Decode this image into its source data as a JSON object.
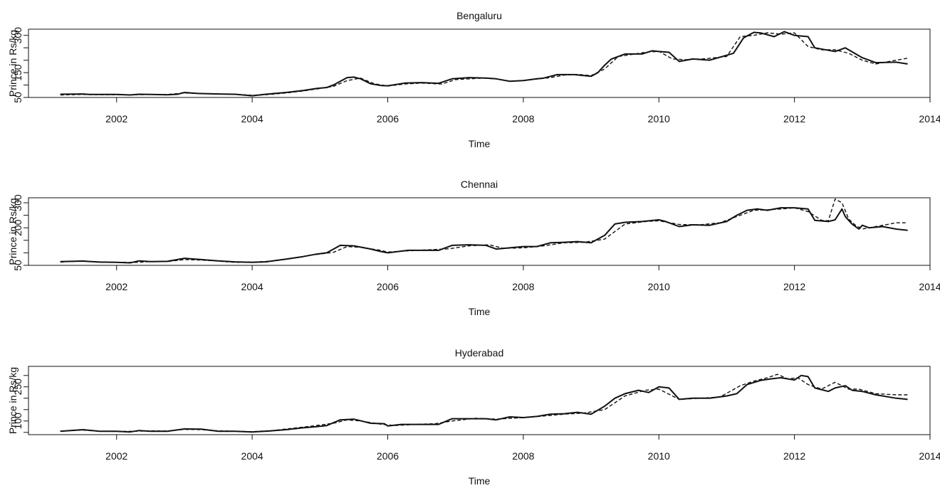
{
  "chart_data": [
    {
      "type": "line",
      "title": "Bengaluru",
      "xlabel": "Time",
      "ylabel": "Prince in Rs/kg",
      "xlim": [
        2000.7,
        2014
      ],
      "ylim": [
        50,
        325
      ],
      "xticks": [
        2002,
        2004,
        2006,
        2008,
        2010,
        2012,
        2014
      ],
      "yticks": [
        50,
        150,
        300
      ],
      "yminor": [
        100,
        200,
        250
      ],
      "series": [
        {
          "style": "solid",
          "x": [
            2001.17,
            2001.5,
            2001.6,
            2002.0,
            2002.2,
            2002.33,
            2002.5,
            2002.75,
            2002.9,
            2003.0,
            2003.2,
            2003.5,
            2003.75,
            2004.0,
            2004.2,
            2004.5,
            2004.75,
            2004.95,
            2005.1,
            2005.2,
            2005.3,
            2005.4,
            2005.5,
            2005.6,
            2005.75,
            2005.9,
            2006.0,
            2006.25,
            2006.5,
            2006.75,
            2006.95,
            2007.2,
            2007.45,
            2007.6,
            2007.8,
            2008.0,
            2008.2,
            2008.3,
            2008.4,
            2008.5,
            2008.75,
            2009.0,
            2009.1,
            2009.2,
            2009.3,
            2009.5,
            2009.75,
            2009.9,
            2010.0,
            2010.15,
            2010.3,
            2010.5,
            2010.75,
            2011.0,
            2011.1,
            2011.25,
            2011.4,
            2011.5,
            2011.7,
            2011.85,
            2012.0,
            2012.2,
            2012.3,
            2012.5,
            2012.6,
            2012.7,
            2012.75,
            2013.0,
            2013.2,
            2013.5,
            2013.67
          ],
          "values": [
            63,
            64,
            62,
            62,
            60,
            63,
            62,
            61,
            63,
            70,
            66,
            64,
            63,
            57,
            63,
            70,
            78,
            86,
            90,
            100,
            115,
            130,
            132,
            125,
            105,
            98,
            97,
            108,
            110,
            107,
            125,
            130,
            128,
            125,
            115,
            118,
            125,
            128,
            135,
            142,
            142,
            135,
            150,
            180,
            205,
            225,
            225,
            238,
            235,
            232,
            195,
            205,
            200,
            220,
            228,
            290,
            312,
            310,
            295,
            315,
            300,
            295,
            250,
            240,
            235,
            245,
            250,
            210,
            190,
            192,
            185
          ]
        },
        {
          "style": "dashed",
          "x": [
            2001.17,
            2001.5,
            2001.75,
            2002.0,
            2002.3,
            2002.5,
            2002.75,
            2003.0,
            2003.2,
            2003.5,
            2003.75,
            2004.0,
            2004.2,
            2004.5,
            2004.75,
            2005.0,
            2005.2,
            2005.4,
            2005.6,
            2005.8,
            2006.0,
            2006.25,
            2006.5,
            2006.8,
            2007.0,
            2007.4,
            2007.6,
            2007.8,
            2008.0,
            2008.2,
            2008.4,
            2008.6,
            2008.8,
            2009.0,
            2009.2,
            2009.4,
            2009.6,
            2009.8,
            2010.0,
            2010.2,
            2010.4,
            2010.7,
            2011.0,
            2011.2,
            2011.4,
            2011.6,
            2011.8,
            2012.0,
            2012.2,
            2012.4,
            2012.6,
            2012.8,
            2013.0,
            2013.2,
            2013.5,
            2013.67
          ],
          "values": [
            60,
            62,
            61,
            61,
            61,
            62,
            62,
            68,
            66,
            64,
            62,
            59,
            61,
            68,
            76,
            86,
            95,
            118,
            128,
            105,
            96,
            104,
            108,
            104,
            122,
            128,
            125,
            116,
            118,
            124,
            130,
            140,
            143,
            138,
            165,
            215,
            223,
            232,
            236,
            205,
            202,
            206,
            215,
            295,
            300,
            310,
            305,
            310,
            255,
            242,
            242,
            228,
            200,
            185,
            200,
            208
          ]
        }
      ]
    },
    {
      "type": "line",
      "title": "Chennai",
      "xlabel": "Time",
      "ylabel": "Prince in Rs/kg",
      "xlim": [
        2000.7,
        2014
      ],
      "ylim": [
        50,
        320
      ],
      "xticks": [
        2002,
        2004,
        2006,
        2008,
        2010,
        2012,
        2014
      ],
      "yticks": [
        50,
        200,
        300
      ],
      "yminor": [
        100,
        150,
        250
      ],
      "series": [
        {
          "style": "solid",
          "x": [
            2001.17,
            2001.5,
            2001.75,
            2002.0,
            2002.2,
            2002.33,
            2002.5,
            2002.75,
            2003.0,
            2003.25,
            2003.5,
            2003.75,
            2004.0,
            2004.2,
            2004.5,
            2004.75,
            2004.95,
            2005.1,
            2005.3,
            2005.5,
            2005.75,
            2005.9,
            2006.0,
            2006.3,
            2006.5,
            2006.75,
            2006.95,
            2007.2,
            2007.45,
            2007.6,
            2007.8,
            2008.0,
            2008.2,
            2008.4,
            2008.6,
            2008.8,
            2009.0,
            2009.2,
            2009.35,
            2009.5,
            2009.75,
            2010.0,
            2010.1,
            2010.3,
            2010.5,
            2010.75,
            2011.0,
            2011.15,
            2011.3,
            2011.45,
            2011.6,
            2011.8,
            2012.0,
            2012.2,
            2012.3,
            2012.5,
            2012.6,
            2012.7,
            2012.75,
            2012.85,
            2012.95,
            2013.0,
            2013.1,
            2013.3,
            2013.5,
            2013.67
          ],
          "values": [
            65,
            67,
            63,
            62,
            60,
            68,
            65,
            66,
            78,
            73,
            68,
            64,
            62,
            64,
            75,
            85,
            95,
            100,
            130,
            128,
            115,
            105,
            100,
            110,
            110,
            110,
            130,
            132,
            130,
            115,
            120,
            125,
            125,
            140,
            142,
            145,
            140,
            170,
            215,
            222,
            225,
            232,
            225,
            205,
            212,
            210,
            225,
            250,
            270,
            275,
            270,
            280,
            280,
            275,
            230,
            225,
            232,
            275,
            245,
            215,
            195,
            210,
            200,
            205,
            195,
            190
          ]
        },
        {
          "style": "dashed",
          "x": [
            2001.17,
            2001.5,
            2001.75,
            2002.0,
            2002.3,
            2002.5,
            2002.75,
            2003.0,
            2003.25,
            2003.5,
            2003.75,
            2004.0,
            2004.3,
            2004.6,
            2004.9,
            2005.2,
            2005.4,
            2005.6,
            2005.9,
            2006.0,
            2006.3,
            2006.6,
            2006.9,
            2007.2,
            2007.5,
            2007.7,
            2008.0,
            2008.3,
            2008.6,
            2008.9,
            2009.2,
            2009.5,
            2009.8,
            2010.0,
            2010.3,
            2010.6,
            2010.9,
            2011.2,
            2011.4,
            2011.6,
            2011.8,
            2012.0,
            2012.2,
            2012.4,
            2012.5,
            2012.6,
            2012.7,
            2012.8,
            2012.9,
            2013.0,
            2013.2,
            2013.5,
            2013.67
          ],
          "values": [
            63,
            68,
            62,
            62,
            62,
            65,
            65,
            73,
            71,
            67,
            62,
            63,
            67,
            78,
            92,
            102,
            125,
            122,
            110,
            103,
            108,
            112,
            116,
            128,
            132,
            118,
            120,
            128,
            140,
            142,
            155,
            215,
            225,
            228,
            213,
            212,
            220,
            250,
            270,
            272,
            275,
            280,
            265,
            230,
            228,
            315,
            300,
            235,
            210,
            195,
            205,
            220,
            220
          ]
        }
      ]
    },
    {
      "type": "line",
      "title": "Hyderabad",
      "xlabel": "Time",
      "ylabel": "Prince in Rs/kg",
      "xlim": [
        2000.7,
        2014
      ],
      "ylim": [
        40,
        340
      ],
      "xticks": [
        2002,
        2004,
        2006,
        2008,
        2010,
        2012,
        2014
      ],
      "yticks": [
        100,
        250
      ],
      "yminor": [
        50,
        150,
        200,
        300
      ],
      "series": [
        {
          "style": "solid",
          "x": [
            2001.17,
            2001.5,
            2001.75,
            2002.0,
            2002.2,
            2002.33,
            2002.5,
            2002.75,
            2003.0,
            2003.25,
            2003.5,
            2003.75,
            2004.0,
            2004.25,
            2004.5,
            2004.75,
            2004.95,
            2005.1,
            2005.3,
            2005.5,
            2005.75,
            2005.95,
            2006.0,
            2006.2,
            2006.5,
            2006.75,
            2006.95,
            2007.2,
            2007.45,
            2007.6,
            2007.8,
            2008.0,
            2008.2,
            2008.4,
            2008.6,
            2008.8,
            2009.0,
            2009.2,
            2009.35,
            2009.5,
            2009.7,
            2009.85,
            2010.0,
            2010.15,
            2010.3,
            2010.5,
            2010.75,
            2011.0,
            2011.15,
            2011.3,
            2011.5,
            2011.65,
            2011.8,
            2012.0,
            2012.1,
            2012.2,
            2012.3,
            2012.5,
            2012.6,
            2012.75,
            2012.85,
            2013.0,
            2013.2,
            2013.5,
            2013.67
          ],
          "values": [
            55,
            62,
            55,
            55,
            52,
            58,
            55,
            55,
            65,
            64,
            55,
            55,
            52,
            56,
            62,
            70,
            75,
            80,
            105,
            108,
            90,
            88,
            78,
            85,
            85,
            85,
            110,
            110,
            110,
            105,
            118,
            115,
            120,
            130,
            132,
            138,
            130,
            165,
            200,
            220,
            235,
            225,
            250,
            245,
            195,
            200,
            200,
            210,
            220,
            260,
            278,
            285,
            290,
            280,
            300,
            295,
            245,
            230,
            245,
            255,
            235,
            230,
            215,
            200,
            195
          ]
        },
        {
          "style": "dashed",
          "x": [
            2001.17,
            2001.5,
            2001.75,
            2002.0,
            2002.3,
            2002.5,
            2002.75,
            2003.0,
            2003.25,
            2003.5,
            2003.75,
            2004.0,
            2004.3,
            2004.6,
            2004.9,
            2005.2,
            2005.4,
            2005.6,
            2005.9,
            2006.1,
            2006.4,
            2006.7,
            2006.95,
            2007.3,
            2007.6,
            2008.0,
            2008.3,
            2008.6,
            2008.9,
            2009.2,
            2009.5,
            2009.8,
            2010.0,
            2010.3,
            2010.6,
            2010.9,
            2011.2,
            2011.4,
            2011.6,
            2011.75,
            2011.9,
            2012.05,
            2012.2,
            2012.4,
            2012.6,
            2012.8,
            2012.95,
            2013.2,
            2013.5,
            2013.67
          ],
          "values": [
            55,
            60,
            55,
            54,
            55,
            57,
            56,
            63,
            62,
            57,
            55,
            53,
            58,
            68,
            78,
            90,
            105,
            100,
            86,
            80,
            85,
            88,
            100,
            112,
            108,
            115,
            122,
            130,
            135,
            150,
            210,
            235,
            240,
            195,
            200,
            205,
            255,
            275,
            290,
            305,
            285,
            290,
            260,
            240,
            270,
            240,
            240,
            220,
            215,
            215
          ]
        }
      ]
    }
  ]
}
